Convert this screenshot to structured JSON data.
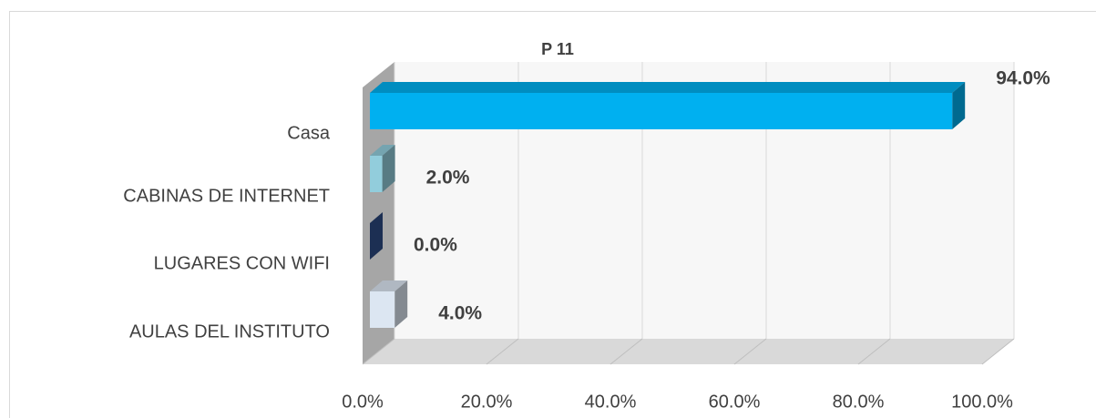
{
  "chart_data": {
    "type": "bar3d",
    "orientation": "horizontal",
    "title": "P 11",
    "categories": [
      "Casa",
      "CABINAS DE INTERNET",
      "LUGARES CON WIFI",
      "AULAS DEL INSTITUTO"
    ],
    "values": [
      94,
      2,
      0,
      4
    ],
    "value_labels": [
      "94.0%",
      "2.0%",
      "0.0%",
      "4.0%"
    ],
    "colors": [
      "#00b0f0",
      "#92cddc",
      "#2f4f8a",
      "#dce6f2"
    ],
    "xlim": [
      0,
      100
    ],
    "xticks": [
      {
        "value": 0,
        "label": "0.0%"
      },
      {
        "value": 20,
        "label": "20.0%"
      },
      {
        "value": 40,
        "label": "40.0%"
      },
      {
        "value": 60,
        "label": "60.0%"
      },
      {
        "value": 80,
        "label": "80.0%"
      },
      {
        "value": 100,
        "label": "100.0%"
      }
    ],
    "grid": true
  }
}
